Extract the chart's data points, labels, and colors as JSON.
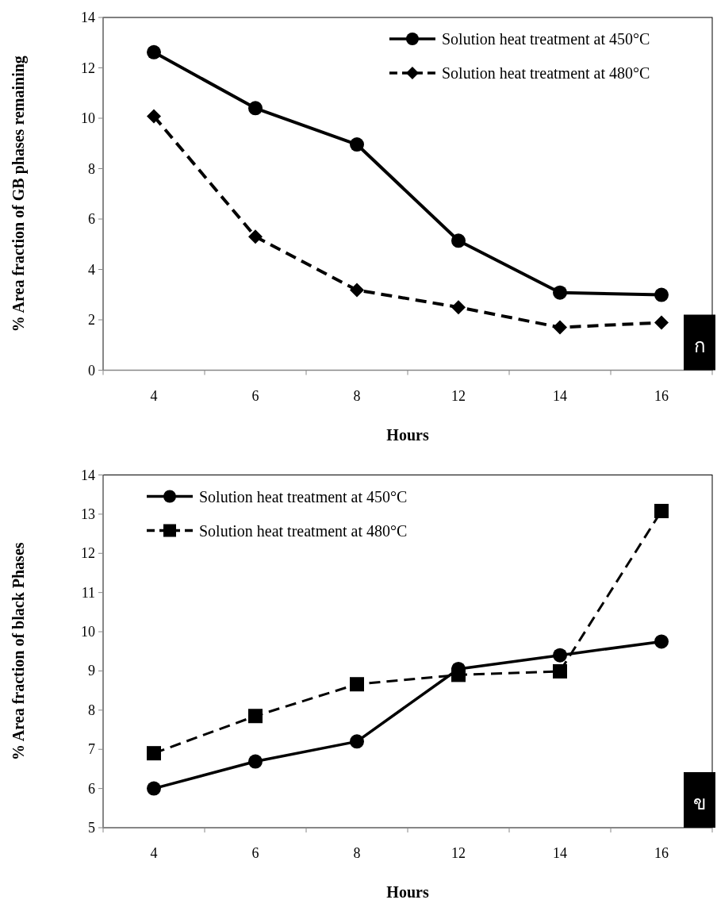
{
  "chart_data": [
    {
      "type": "line",
      "xlabel": "Hours",
      "ylabel": "% Area fraction of GB phases remaining",
      "categories": [
        "4",
        "6",
        "8",
        "12",
        "14",
        "16"
      ],
      "ylim": [
        0,
        14
      ],
      "yticks": [
        0,
        2,
        4,
        6,
        8,
        10,
        12,
        14
      ],
      "legend": "top right",
      "annotations": [
        "ก"
      ],
      "series": [
        {
          "name": "Solution heat treatment at 450°C",
          "color": "#000000",
          "marker": "circle",
          "line_style": "solid",
          "values": [
            12.62,
            10.4,
            8.96,
            5.14,
            3.08,
            2.99
          ]
        },
        {
          "name": "Solution heat treatment at 480°C",
          "color": "#000000",
          "marker": "diamond",
          "line_style": "dashed",
          "values": [
            10.08,
            5.3,
            3.18,
            2.5,
            1.7,
            1.89
          ]
        }
      ]
    },
    {
      "type": "line",
      "xlabel": "Hours",
      "ylabel": "% Area fraction of black Phases",
      "categories": [
        "4",
        "6",
        "8",
        "12",
        "14",
        "16"
      ],
      "ylim": [
        5,
        14
      ],
      "yticks": [
        5,
        6,
        7,
        8,
        9,
        10,
        11,
        12,
        13,
        14
      ],
      "legend": "top left",
      "annotations": [
        "ข"
      ],
      "series": [
        {
          "name": "Solution heat treatment at 450°C",
          "color": "#000000",
          "marker": "circle",
          "line_style": "solid",
          "values": [
            6.0,
            6.69,
            7.2,
            9.05,
            9.4,
            9.75
          ]
        },
        {
          "name": "Solution heat treatment at 480°C",
          "color": "#000000",
          "marker": "square",
          "line_style": "dashed",
          "values": [
            6.9,
            7.85,
            8.66,
            8.9,
            8.99,
            13.08
          ]
        }
      ]
    }
  ]
}
